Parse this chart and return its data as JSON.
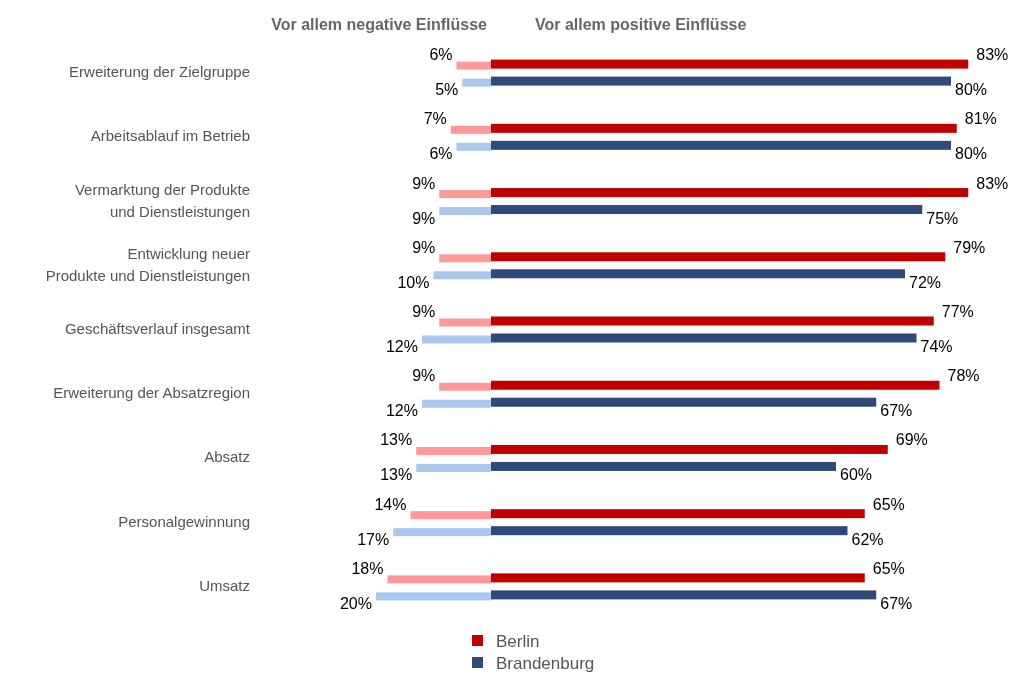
{
  "chart_data": [
    {
      "type": "bar",
      "orientation": "horizontal",
      "title": "Vor allem negative Einflüsse",
      "categories": [
        "Erweiterung der Zielgruppe",
        "Arbeitsablauf im Betrieb",
        "Vermarktung der Produkte\nund Dienstleistungen",
        "Entwicklung neuer\nProdukte und Dienstleistungen",
        "Geschäftsverlauf insgesamt",
        "Erweiterung der Absatzregion",
        "Absatz",
        "Personalgewinnung",
        "Umsatz"
      ],
      "series": [
        {
          "color": "#ff9999",
          "values": [
            6,
            7,
            9,
            9,
            9,
            9,
            13,
            14,
            18
          ],
          "value_labels": [
            "6%",
            "7%",
            "9%",
            "9%",
            "9%",
            "9%",
            "13%",
            "14%",
            "18%"
          ]
        },
        {
          "color": "#a9c8ec",
          "values": [
            5,
            6,
            9,
            10,
            12,
            12,
            13,
            17,
            20
          ],
          "value_labels": [
            "5%",
            "6%",
            "9%",
            "10%",
            "12%",
            "12%",
            "13%",
            "17%",
            "20%"
          ]
        }
      ],
      "xlim": [
        20,
        0
      ],
      "tick_labels": "y"
    },
    {
      "type": "bar",
      "orientation": "horizontal",
      "title": "Vor allem positive Einflüsse",
      "categories": [
        null,
        null,
        null,
        null,
        null,
        null,
        null,
        null,
        null
      ],
      "series": [
        {
          "name": "Berlin",
          "color": "#c00000",
          "values": [
            83,
            81,
            83,
            79,
            77,
            78,
            69,
            65,
            65
          ],
          "value_labels": [
            "83%",
            "81%",
            "83%",
            "79%",
            "77%",
            "78%",
            "69%",
            "65%",
            "65%"
          ]
        },
        {
          "name": "Brandenburg",
          "color": "#2e4a7a",
          "values": [
            80,
            80,
            75,
            72,
            74,
            67,
            60,
            62,
            67
          ],
          "value_labels": [
            "80%",
            "80%",
            "75%",
            "72%",
            "74%",
            "67%",
            "60%",
            "62%",
            "67%"
          ]
        }
      ],
      "xlim": [
        0,
        83
      ],
      "legend": "bottom",
      "tick_labels": false
    }
  ]
}
